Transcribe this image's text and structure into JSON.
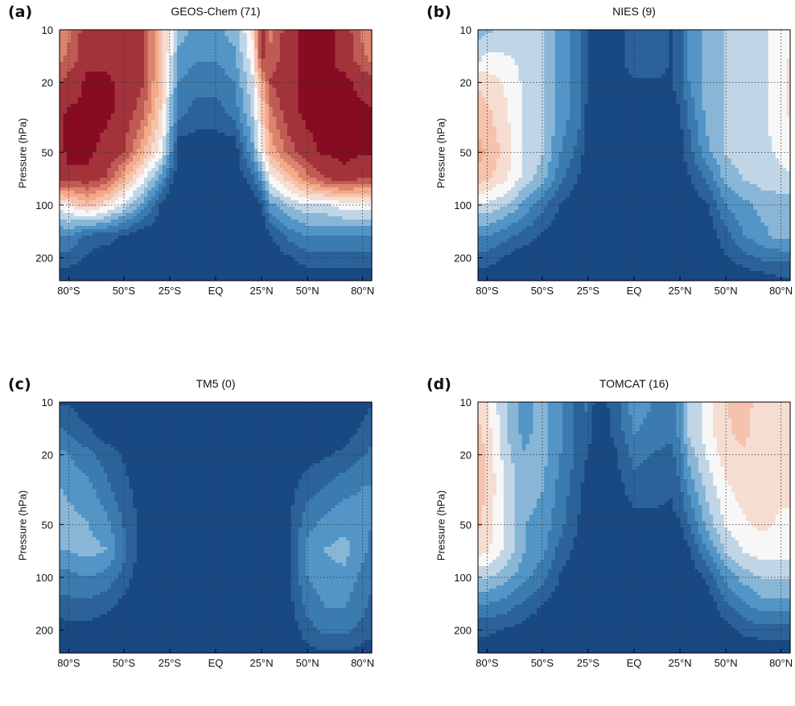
{
  "figure": {
    "colors": {
      "blue_dark": "#08306b",
      "blue_mid": "#4a90c4",
      "white": "#f7f7f7",
      "red_mid": "#f4a582",
      "red_dark": "#870b22",
      "grid": "#333333"
    }
  },
  "chart_data": [
    {
      "type": "heatmap",
      "panel_letter": "(a)",
      "title": "GEOS-Chem (71)",
      "xlabel": "",
      "ylabel": "Pressure (hPa)",
      "x_ticks": [
        -80,
        -50,
        -25,
        0,
        25,
        50,
        80
      ],
      "x_ticklabels": [
        "80°S",
        "50°S",
        "25°S",
        "EQ",
        "25°N",
        "50°N",
        "80°N"
      ],
      "y_ticks": [
        10,
        20,
        50,
        100,
        200
      ],
      "y_ticklabels": [
        "10",
        "20",
        "50",
        "100",
        "200"
      ],
      "xlim": [
        -85,
        85
      ],
      "ylim": [
        270,
        10
      ],
      "yscale": "log",
      "grid": true,
      "lat": [
        -85,
        -80,
        -70,
        -60,
        -50,
        -40,
        -30,
        -25,
        -20,
        -10,
        0,
        10,
        20,
        25,
        30,
        40,
        50,
        60,
        70,
        80,
        85
      ],
      "pressure": [
        10,
        15,
        20,
        30,
        50,
        70,
        100,
        150,
        200,
        270
      ],
      "values": [
        [
          0.5,
          0.6,
          0.9,
          0.85,
          0.9,
          0.8,
          0.3,
          0.05,
          -0.3,
          -0.4,
          -0.4,
          -0.3,
          0.1,
          0.9,
          0.6,
          0.9,
          0.95,
          0.95,
          0.9,
          0.6,
          0.5
        ],
        [
          0.6,
          0.7,
          0.9,
          0.9,
          0.9,
          0.8,
          0.3,
          0.0,
          -0.4,
          -0.5,
          -0.5,
          -0.4,
          0.0,
          0.8,
          0.7,
          0.9,
          0.95,
          0.95,
          0.9,
          0.7,
          0.6
        ],
        [
          0.8,
          0.85,
          0.95,
          0.95,
          0.9,
          0.8,
          0.3,
          -0.1,
          -0.5,
          -0.6,
          -0.6,
          -0.5,
          -0.1,
          0.4,
          0.8,
          0.9,
          0.95,
          0.95,
          0.95,
          0.9,
          0.85
        ],
        [
          0.9,
          0.95,
          0.95,
          0.95,
          0.9,
          0.7,
          0.2,
          -0.2,
          -0.6,
          -0.7,
          -0.7,
          -0.6,
          -0.2,
          0.2,
          0.6,
          0.9,
          0.95,
          0.95,
          0.95,
          0.95,
          0.95
        ],
        [
          0.9,
          0.95,
          0.95,
          0.9,
          0.8,
          0.4,
          0.0,
          -0.4,
          -0.9,
          -0.9,
          -0.9,
          -0.9,
          -0.4,
          0.0,
          0.4,
          0.7,
          0.9,
          0.95,
          0.95,
          0.95,
          0.95
        ],
        [
          0.9,
          0.9,
          0.9,
          0.8,
          0.4,
          0.0,
          -0.4,
          -0.7,
          -0.9,
          -0.9,
          -0.9,
          -0.9,
          -0.7,
          -0.4,
          0.0,
          0.3,
          0.6,
          0.8,
          0.9,
          0.8,
          0.8
        ],
        [
          0.0,
          0.1,
          0.3,
          0.1,
          -0.1,
          -0.4,
          -0.8,
          -0.9,
          -0.9,
          -0.9,
          -0.9,
          -0.9,
          -0.9,
          -0.8,
          -0.4,
          -0.2,
          -0.1,
          -0.1,
          0.0,
          0.0,
          0.0
        ],
        [
          -0.5,
          -0.5,
          -0.7,
          -0.7,
          -0.8,
          -0.9,
          -0.9,
          -0.9,
          -0.9,
          -0.9,
          -0.9,
          -0.9,
          -0.9,
          -0.9,
          -0.8,
          -0.6,
          -0.5,
          -0.5,
          -0.5,
          -0.5,
          -0.5
        ],
        [
          -0.7,
          -0.7,
          -0.8,
          -0.9,
          -0.9,
          -0.9,
          -0.9,
          -0.9,
          -0.9,
          -0.9,
          -0.9,
          -0.9,
          -0.9,
          -0.9,
          -0.9,
          -0.8,
          -0.7,
          -0.7,
          -0.7,
          -0.7,
          -0.7
        ],
        [
          -0.9,
          -0.9,
          -0.9,
          -0.9,
          -0.9,
          -0.9,
          -0.9,
          -0.9,
          -0.9,
          -0.9,
          -0.9,
          -0.9,
          -0.9,
          -0.9,
          -0.9,
          -0.9,
          -0.9,
          -0.9,
          -0.9,
          -0.9,
          -0.9
        ]
      ]
    },
    {
      "type": "heatmap",
      "panel_letter": "(b)",
      "title": "NIES (9)",
      "xlabel": "",
      "ylabel": "Pressure (hPa)",
      "x_ticks": [
        -80,
        -50,
        -25,
        0,
        25,
        50,
        80
      ],
      "x_ticklabels": [
        "80°S",
        "50°S",
        "25°S",
        "EQ",
        "25°N",
        "50°N",
        "80°N"
      ],
      "y_ticks": [
        10,
        20,
        50,
        100,
        200
      ],
      "y_ticklabels": [
        "10",
        "20",
        "50",
        "100",
        "200"
      ],
      "xlim": [
        -85,
        85
      ],
      "ylim": [
        270,
        10
      ],
      "yscale": "log",
      "grid": true,
      "lat": [
        -85,
        -80,
        -70,
        -60,
        -50,
        -40,
        -30,
        -25,
        -20,
        -10,
        0,
        10,
        20,
        25,
        30,
        40,
        50,
        60,
        70,
        80,
        85
      ],
      "pressure": [
        10,
        15,
        20,
        30,
        50,
        70,
        100,
        150,
        200,
        270
      ],
      "values": [
        [
          -0.3,
          -0.25,
          -0.15,
          -0.1,
          -0.2,
          -0.4,
          -0.6,
          -0.8,
          -0.9,
          -0.85,
          -0.7,
          -0.7,
          -0.8,
          -0.7,
          -0.5,
          -0.3,
          -0.2,
          -0.15,
          -0.1,
          0.0,
          0.0
        ],
        [
          -0.1,
          0.0,
          -0.05,
          -0.1,
          -0.2,
          -0.4,
          -0.6,
          -0.8,
          -0.9,
          -0.85,
          -0.7,
          -0.7,
          -0.8,
          -0.7,
          -0.5,
          -0.3,
          -0.2,
          -0.1,
          -0.1,
          0.0,
          0.1
        ],
        [
          0.2,
          0.15,
          0.05,
          -0.1,
          -0.2,
          -0.4,
          -0.6,
          -0.8,
          -0.9,
          -0.9,
          -0.8,
          -0.8,
          -0.8,
          -0.7,
          -0.5,
          -0.3,
          -0.2,
          -0.1,
          -0.1,
          0.0,
          0.1
        ],
        [
          0.3,
          0.25,
          0.1,
          -0.1,
          -0.2,
          -0.4,
          -0.6,
          -0.85,
          -0.9,
          -0.9,
          -0.9,
          -0.9,
          -0.9,
          -0.8,
          -0.6,
          -0.3,
          -0.2,
          -0.1,
          -0.1,
          0.0,
          0.1
        ],
        [
          0.4,
          0.35,
          0.15,
          -0.1,
          -0.2,
          -0.5,
          -0.7,
          -0.9,
          -0.9,
          -0.9,
          -0.9,
          -0.9,
          -0.9,
          -0.85,
          -0.7,
          -0.4,
          -0.2,
          -0.15,
          -0.1,
          -0.05,
          0.0
        ],
        [
          0.3,
          0.25,
          0.1,
          -0.1,
          -0.3,
          -0.6,
          -0.8,
          -0.9,
          -0.9,
          -0.9,
          -0.9,
          -0.9,
          -0.9,
          -0.9,
          -0.8,
          -0.6,
          -0.3,
          -0.2,
          -0.15,
          -0.1,
          -0.1
        ],
        [
          -0.1,
          -0.1,
          -0.2,
          -0.4,
          -0.6,
          -0.8,
          -0.9,
          -0.9,
          -0.9,
          -0.9,
          -0.9,
          -0.9,
          -0.9,
          -0.9,
          -0.9,
          -0.8,
          -0.5,
          -0.4,
          -0.3,
          -0.3,
          -0.3
        ],
        [
          -0.5,
          -0.5,
          -0.6,
          -0.7,
          -0.8,
          -0.9,
          -0.9,
          -0.9,
          -0.9,
          -0.9,
          -0.9,
          -0.9,
          -0.9,
          -0.9,
          -0.9,
          -0.9,
          -0.7,
          -0.5,
          -0.4,
          -0.3,
          -0.3
        ],
        [
          -0.7,
          -0.7,
          -0.8,
          -0.9,
          -0.9,
          -0.9,
          -0.9,
          -0.9,
          -0.9,
          -0.9,
          -0.9,
          -0.9,
          -0.9,
          -0.9,
          -0.9,
          -0.9,
          -0.8,
          -0.7,
          -0.6,
          -0.6,
          -0.6
        ],
        [
          -0.9,
          -0.9,
          -0.9,
          -0.9,
          -0.9,
          -0.9,
          -0.9,
          -0.9,
          -0.9,
          -0.9,
          -0.9,
          -0.9,
          -0.9,
          -0.9,
          -0.9,
          -0.9,
          -0.9,
          -0.9,
          -0.9,
          -0.8,
          -0.8
        ]
      ]
    },
    {
      "type": "heatmap",
      "panel_letter": "(c)",
      "title": "TM5 (0)",
      "xlabel": "",
      "ylabel": "Pressure (hPa)",
      "x_ticks": [
        -80,
        -50,
        -25,
        0,
        25,
        50,
        80
      ],
      "x_ticklabels": [
        "80°S",
        "50°S",
        "25°S",
        "EQ",
        "25°N",
        "50°N",
        "80°N"
      ],
      "y_ticks": [
        10,
        20,
        50,
        100,
        200
      ],
      "y_ticklabels": [
        "10",
        "20",
        "50",
        "100",
        "200"
      ],
      "xlim": [
        -85,
        85
      ],
      "ylim": [
        270,
        10
      ],
      "yscale": "log",
      "grid": true,
      "lat": [
        -85,
        -80,
        -70,
        -60,
        -50,
        -40,
        -30,
        -25,
        -20,
        -10,
        0,
        10,
        20,
        25,
        30,
        40,
        50,
        60,
        70,
        80,
        85
      ],
      "pressure": [
        10,
        15,
        20,
        30,
        50,
        70,
        100,
        150,
        200,
        270
      ],
      "values": [
        [
          -0.8,
          -0.8,
          -0.9,
          -0.9,
          -0.9,
          -0.9,
          -0.9,
          -0.9,
          -0.9,
          -0.9,
          -0.9,
          -0.9,
          -0.9,
          -0.9,
          -0.9,
          -0.9,
          -0.9,
          -0.9,
          -0.9,
          -0.85,
          -0.8
        ],
        [
          -0.6,
          -0.65,
          -0.75,
          -0.85,
          -0.9,
          -0.9,
          -0.9,
          -0.9,
          -0.9,
          -0.9,
          -0.9,
          -0.9,
          -0.9,
          -0.9,
          -0.9,
          -0.9,
          -0.9,
          -0.9,
          -0.85,
          -0.75,
          -0.7
        ],
        [
          -0.45,
          -0.5,
          -0.6,
          -0.7,
          -0.8,
          -0.9,
          -0.9,
          -0.9,
          -0.9,
          -0.9,
          -0.9,
          -0.9,
          -0.9,
          -0.9,
          -0.9,
          -0.9,
          -0.85,
          -0.8,
          -0.75,
          -0.65,
          -0.6
        ],
        [
          -0.35,
          -0.4,
          -0.45,
          -0.6,
          -0.75,
          -0.85,
          -0.9,
          -0.9,
          -0.9,
          -0.9,
          -0.9,
          -0.9,
          -0.9,
          -0.9,
          -0.9,
          -0.85,
          -0.7,
          -0.65,
          -0.55,
          -0.5,
          -0.5
        ],
        [
          -0.3,
          -0.3,
          -0.35,
          -0.45,
          -0.65,
          -0.85,
          -0.9,
          -0.9,
          -0.9,
          -0.9,
          -0.9,
          -0.9,
          -0.9,
          -0.9,
          -0.9,
          -0.8,
          -0.55,
          -0.45,
          -0.4,
          -0.45,
          -0.5
        ],
        [
          -0.35,
          -0.35,
          -0.3,
          -0.35,
          -0.6,
          -0.85,
          -0.9,
          -0.9,
          -0.9,
          -0.9,
          -0.9,
          -0.9,
          -0.9,
          -0.9,
          -0.9,
          -0.8,
          -0.45,
          -0.35,
          -0.3,
          -0.45,
          -0.55
        ],
        [
          -0.55,
          -0.55,
          -0.5,
          -0.55,
          -0.7,
          -0.9,
          -0.9,
          -0.9,
          -0.9,
          -0.9,
          -0.9,
          -0.9,
          -0.9,
          -0.9,
          -0.9,
          -0.8,
          -0.5,
          -0.4,
          -0.4,
          -0.55,
          -0.6
        ],
        [
          -0.7,
          -0.7,
          -0.7,
          -0.75,
          -0.85,
          -0.9,
          -0.9,
          -0.9,
          -0.9,
          -0.9,
          -0.9,
          -0.9,
          -0.9,
          -0.9,
          -0.9,
          -0.85,
          -0.6,
          -0.5,
          -0.5,
          -0.6,
          -0.7
        ],
        [
          -0.9,
          -0.85,
          -0.85,
          -0.9,
          -0.9,
          -0.9,
          -0.9,
          -0.9,
          -0.9,
          -0.9,
          -0.9,
          -0.9,
          -0.9,
          -0.9,
          -0.9,
          -0.9,
          -0.7,
          -0.6,
          -0.6,
          -0.7,
          -0.75
        ],
        [
          -0.9,
          -0.9,
          -0.9,
          -0.9,
          -0.9,
          -0.9,
          -0.9,
          -0.9,
          -0.9,
          -0.9,
          -0.9,
          -0.9,
          -0.9,
          -0.9,
          -0.9,
          -0.9,
          -0.85,
          -0.8,
          -0.8,
          -0.85,
          -0.85
        ]
      ]
    },
    {
      "type": "heatmap",
      "panel_letter": "(d)",
      "title": "TOMCAT (16)",
      "xlabel": "",
      "ylabel": "Pressure (hPa)",
      "x_ticks": [
        -80,
        -50,
        -25,
        0,
        25,
        50,
        80
      ],
      "x_ticklabels": [
        "80°S",
        "50°S",
        "25°S",
        "EQ",
        "25°N",
        "50°N",
        "80°N"
      ],
      "y_ticks": [
        10,
        20,
        50,
        100,
        200
      ],
      "y_ticklabels": [
        "10",
        "20",
        "50",
        "100",
        "200"
      ],
      "xlim": [
        -85,
        85
      ],
      "ylim": [
        270,
        10
      ],
      "yscale": "log",
      "grid": true,
      "lat": [
        -85,
        -80,
        -70,
        -60,
        -50,
        -40,
        -30,
        -25,
        -20,
        -10,
        0,
        10,
        20,
        25,
        30,
        40,
        50,
        60,
        70,
        80,
        85
      ],
      "pressure": [
        10,
        15,
        20,
        30,
        50,
        70,
        100,
        150,
        200,
        270
      ],
      "values": [
        [
          0.2,
          0.1,
          -0.2,
          -0.4,
          -0.3,
          -0.5,
          -0.7,
          -0.6,
          -0.9,
          -0.7,
          -0.4,
          -0.5,
          -0.6,
          -0.4,
          -0.2,
          0.0,
          0.2,
          0.3,
          0.1,
          0.2,
          0.15
        ],
        [
          0.25,
          0.15,
          -0.2,
          -0.4,
          -0.3,
          -0.5,
          -0.7,
          -0.7,
          -0.9,
          -0.75,
          -0.5,
          -0.55,
          -0.6,
          -0.45,
          -0.2,
          0.0,
          0.2,
          0.25,
          0.1,
          0.15,
          0.15
        ],
        [
          0.3,
          0.2,
          -0.15,
          -0.35,
          -0.3,
          -0.5,
          -0.7,
          -0.8,
          -0.9,
          -0.8,
          -0.6,
          -0.65,
          -0.7,
          -0.55,
          -0.3,
          -0.05,
          0.15,
          0.2,
          0.15,
          0.1,
          0.1
        ],
        [
          0.3,
          0.2,
          -0.1,
          -0.3,
          -0.35,
          -0.55,
          -0.75,
          -0.85,
          -0.9,
          -0.85,
          -0.7,
          -0.7,
          -0.75,
          -0.65,
          -0.45,
          -0.15,
          0.05,
          0.15,
          0.15,
          0.1,
          0.1
        ],
        [
          0.25,
          0.15,
          -0.1,
          -0.35,
          -0.4,
          -0.6,
          -0.8,
          -0.9,
          -0.9,
          -0.9,
          -0.85,
          -0.85,
          -0.85,
          -0.8,
          -0.65,
          -0.3,
          -0.05,
          0.05,
          0.1,
          0.05,
          0.05
        ],
        [
          0.15,
          0.1,
          -0.1,
          -0.35,
          -0.45,
          -0.7,
          -0.85,
          -0.9,
          -0.9,
          -0.9,
          -0.9,
          -0.9,
          -0.9,
          -0.9,
          -0.8,
          -0.5,
          -0.2,
          -0.05,
          0.0,
          0.0,
          0.0
        ],
        [
          -0.2,
          -0.2,
          -0.3,
          -0.45,
          -0.6,
          -0.8,
          -0.9,
          -0.9,
          -0.9,
          -0.9,
          -0.9,
          -0.9,
          -0.9,
          -0.9,
          -0.9,
          -0.75,
          -0.45,
          -0.3,
          -0.2,
          -0.2,
          -0.2
        ],
        [
          -0.55,
          -0.55,
          -0.6,
          -0.7,
          -0.8,
          -0.9,
          -0.9,
          -0.9,
          -0.9,
          -0.9,
          -0.9,
          -0.9,
          -0.9,
          -0.9,
          -0.9,
          -0.9,
          -0.7,
          -0.55,
          -0.45,
          -0.45,
          -0.45
        ],
        [
          -0.75,
          -0.75,
          -0.8,
          -0.85,
          -0.9,
          -0.9,
          -0.9,
          -0.9,
          -0.9,
          -0.9,
          -0.9,
          -0.9,
          -0.9,
          -0.9,
          -0.9,
          -0.9,
          -0.85,
          -0.75,
          -0.7,
          -0.7,
          -0.7
        ],
        [
          -0.9,
          -0.9,
          -0.9,
          -0.9,
          -0.9,
          -0.9,
          -0.9,
          -0.9,
          -0.9,
          -0.9,
          -0.9,
          -0.9,
          -0.9,
          -0.9,
          -0.9,
          -0.9,
          -0.9,
          -0.9,
          -0.9,
          -0.9,
          -0.9
        ]
      ]
    }
  ]
}
